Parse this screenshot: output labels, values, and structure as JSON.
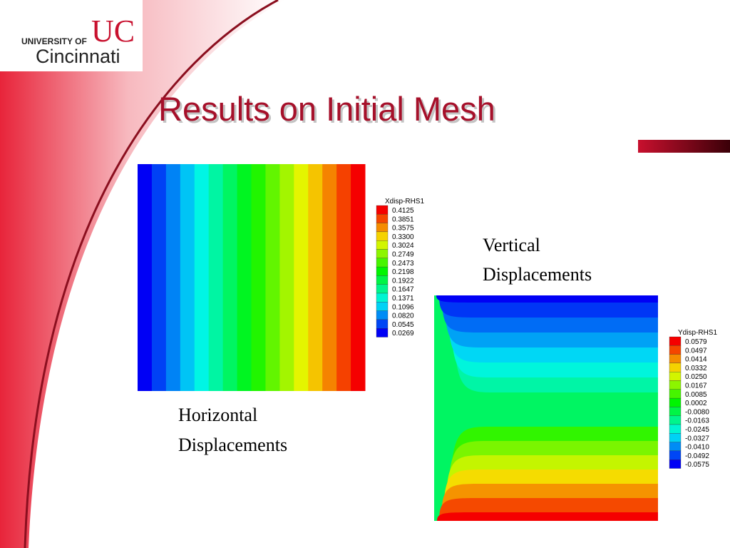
{
  "logo": {
    "university_of": "UNIVERSITY OF",
    "mark": "UC",
    "name": "Cincinnati"
  },
  "title": "Results on Initial Mesh",
  "plots": [
    {
      "legend_title": "Xdisp-RHS1",
      "legend_labels": [
        "0.4125",
        "0.3851",
        "0.3575",
        "0.3300",
        "0.3024",
        "0.2749",
        "0.2473",
        "0.2198",
        "0.1922",
        "0.1647",
        "0.1371",
        "0.1096",
        "0.0820",
        "0.0545",
        "0.0269"
      ],
      "caption": [
        "Horizontal",
        "Displacements"
      ]
    },
    {
      "legend_title": "Ydisp-RHS1",
      "legend_labels": [
        "0.0579",
        "0.0497",
        "0.0414",
        "0.0332",
        "0.0250",
        "0.0167",
        "0.0085",
        "0.0002",
        "-0.0080",
        "-0.0163",
        "-0.0245",
        "-0.0327",
        "-0.0410",
        "-0.0492",
        "-0.0575"
      ],
      "caption": [
        "Vertical",
        "Displacements"
      ]
    }
  ]
}
